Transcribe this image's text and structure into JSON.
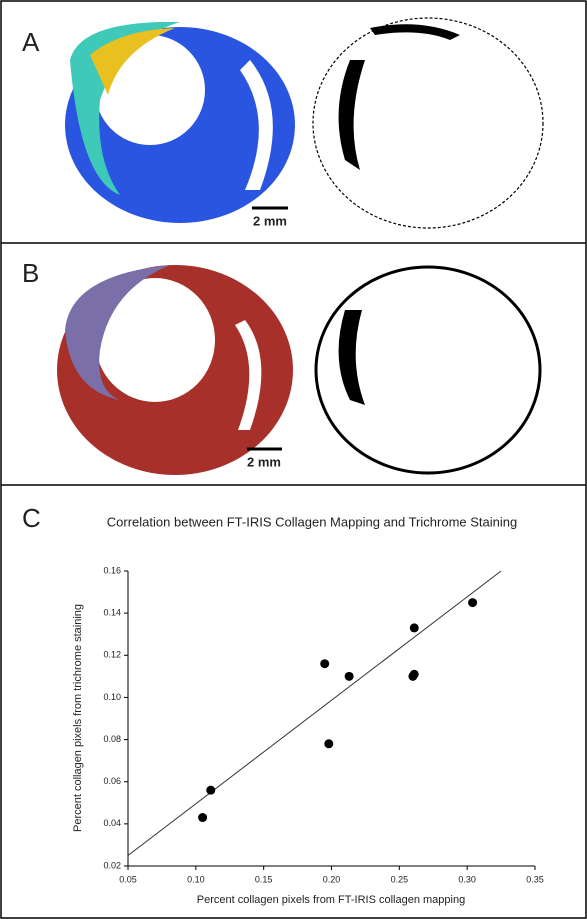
{
  "panels": {
    "labels": [
      "A",
      "B",
      "C"
    ],
    "scale_bars": [
      "2 mm",
      "2 mm"
    ]
  },
  "chart_data": {
    "type": "scatter",
    "title": "Correlation between FT-IRIS Collagen Mapping and Trichrome Staining",
    "x_label": "Percent collagen pixels from FT-IRIS collagen mapping",
    "y_label": "Percent collagen pixels from trichrome staining",
    "x": [
      0.105,
      0.111,
      0.195,
      0.198,
      0.213,
      0.261,
      0.26,
      0.261,
      0.304
    ],
    "values": [
      0.043,
      0.056,
      0.116,
      0.078,
      0.11,
      0.133,
      0.11,
      0.111,
      0.145
    ],
    "color": "#000000",
    "fit_line": {
      "x": [
        0.05,
        0.325
      ],
      "y": [
        0.025,
        0.16
      ]
    },
    "xlim": [
      0.05,
      0.35
    ],
    "ylim": [
      0.02,
      0.16
    ],
    "xticks": [
      0.05,
      {
        "value": 0.1,
        "label": "0.10"
      },
      0.15,
      {
        "value": 0.2,
        "label": "0.20"
      },
      0.25,
      {
        "value": 0.3,
        "label": "0.30"
      },
      0.35
    ],
    "yticks": [
      0.02,
      0.04,
      0.06,
      0.08,
      {
        "value": 0.1,
        "label": "0.10"
      },
      0.12,
      0.14,
      0.16
    ]
  }
}
